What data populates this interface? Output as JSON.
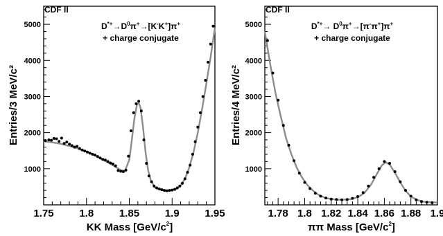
{
  "chart_data": [
    {
      "type": "scatter",
      "experiment": "CDF II",
      "ylabel": "Entries/3 MeV/c²",
      "xlabel_parts": {
        "main": "KK Mass [GeV/c",
        "sup": "2",
        "end": "]"
      },
      "annotation": {
        "line1": [
          {
            "t": "D"
          },
          {
            "t": "*+",
            "sup": true
          },
          {
            "t": "→D"
          },
          {
            "t": "0",
            "sup": true
          },
          {
            "t": "π"
          },
          {
            "t": "+",
            "sup": true
          },
          {
            "t": "→[K"
          },
          {
            "t": "-",
            "sup": true
          },
          {
            "t": "K"
          },
          {
            "t": "+",
            "sup": true
          },
          {
            "t": "]π"
          },
          {
            "t": "+",
            "sup": true
          }
        ],
        "line2": "+ charge conjugate"
      },
      "xlim": [
        1.75,
        1.95
      ],
      "ylim": [
        0,
        5500
      ],
      "x_ticks": [
        "1.75",
        "1.8",
        "1.85",
        "1.9",
        "1.95"
      ],
      "y_ticks": [
        "1000",
        "2000",
        "3000",
        "4000",
        "5000"
      ],
      "series": [
        {
          "style": "points",
          "x": [
            1.752,
            1.756,
            1.759,
            1.762,
            1.765,
            1.768,
            1.771,
            1.774,
            1.777,
            1.78,
            1.783,
            1.786,
            1.789,
            1.792,
            1.795,
            1.798,
            1.801,
            1.804,
            1.807,
            1.81,
            1.813,
            1.816,
            1.819,
            1.822,
            1.825,
            1.828,
            1.831,
            1.834,
            1.837,
            1.84,
            1.843,
            1.846,
            1.849,
            1.852,
            1.855,
            1.858,
            1.861,
            1.864,
            1.867,
            1.87,
            1.873,
            1.876,
            1.879,
            1.882,
            1.885,
            1.888,
            1.891,
            1.894,
            1.897,
            1.9,
            1.903,
            1.906,
            1.909,
            1.912,
            1.915,
            1.918,
            1.921,
            1.924,
            1.927,
            1.93,
            1.933,
            1.936,
            1.939,
            1.942,
            1.945,
            1.948
          ],
          "y": [
            1780,
            1800,
            1790,
            1840,
            1830,
            1760,
            1850,
            1700,
            1740,
            1680,
            1640,
            1600,
            1620,
            1560,
            1520,
            1490,
            1460,
            1430,
            1400,
            1380,
            1340,
            1300,
            1260,
            1240,
            1200,
            1160,
            1130,
            1080,
            950,
            930,
            920,
            960,
            1350,
            2050,
            2550,
            2800,
            2870,
            2600,
            1800,
            1150,
            800,
            640,
            520,
            470,
            440,
            420,
            400,
            390,
            400,
            410,
            430,
            470,
            520,
            600,
            720,
            900,
            1100,
            1400,
            1750,
            2150,
            2550,
            3000,
            3450,
            3950,
            4450,
            4950
          ]
        },
        {
          "style": "curve",
          "x": [
            1.75,
            1.76,
            1.77,
            1.78,
            1.79,
            1.8,
            1.81,
            1.82,
            1.83,
            1.84,
            1.845,
            1.85,
            1.853,
            1.856,
            1.859,
            1.861,
            1.863,
            1.866,
            1.869,
            1.872,
            1.875,
            1.88,
            1.885,
            1.89,
            1.895,
            1.9,
            1.905,
            1.91,
            1.915,
            1.92,
            1.925,
            1.93,
            1.935,
            1.94,
            1.945,
            1.95
          ],
          "y": [
            1760,
            1730,
            1690,
            1630,
            1560,
            1480,
            1370,
            1240,
            1110,
            960,
            940,
            1250,
            1800,
            2400,
            2780,
            2820,
            2700,
            2150,
            1450,
            950,
            690,
            480,
            430,
            400,
            390,
            400,
            440,
            540,
            720,
            1030,
            1450,
            2000,
            2650,
            3350,
            4100,
            4900
          ]
        }
      ]
    },
    {
      "type": "scatter",
      "experiment": "CDF II",
      "ylabel": "Entries/4 MeV/c²",
      "xlabel_parts": {
        "main": "ππ Mass [GeV/c",
        "sup": "2",
        "end": "]"
      },
      "annotation": {
        "line1": [
          {
            "t": "D"
          },
          {
            "t": "*+",
            "sup": true
          },
          {
            "t": "→ D"
          },
          {
            "t": "0",
            "sup": true
          },
          {
            "t": "π"
          },
          {
            "t": "+",
            "sup": true
          },
          {
            "t": "→[π"
          },
          {
            "t": "-",
            "sup": true
          },
          {
            "t": "π"
          },
          {
            "t": "+",
            "sup": true
          },
          {
            "t": "]π"
          },
          {
            "t": "+",
            "sup": true
          }
        ],
        "line2": "+ charge conjugate"
      },
      "xlim": [
        1.77,
        1.9
      ],
      "ylim": [
        0,
        5500
      ],
      "x_ticks": [
        "1.78",
        "1.8",
        "1.82",
        "1.84",
        "1.86",
        "1.88",
        "1.9"
      ],
      "y_ticks": [
        "1000",
        "2000",
        "3000",
        "4000",
        "5000"
      ],
      "series": [
        {
          "style": "points",
          "x": [
            1.772,
            1.776,
            1.78,
            1.784,
            1.788,
            1.792,
            1.796,
            1.8,
            1.804,
            1.808,
            1.812,
            1.816,
            1.82,
            1.824,
            1.828,
            1.832,
            1.836,
            1.84,
            1.844,
            1.848,
            1.852,
            1.856,
            1.86,
            1.864,
            1.868,
            1.872,
            1.876,
            1.88,
            1.884,
            1.888,
            1.892,
            1.896
          ],
          "y": [
            4550,
            3650,
            2900,
            2200,
            1650,
            1220,
            880,
            620,
            450,
            320,
            240,
            190,
            160,
            150,
            140,
            150,
            180,
            230,
            340,
            520,
            760,
            1000,
            1200,
            1150,
            920,
            640,
            400,
            240,
            140,
            90,
            70,
            60
          ]
        },
        {
          "style": "curve",
          "x": [
            1.77,
            1.774,
            1.778,
            1.782,
            1.786,
            1.79,
            1.794,
            1.798,
            1.802,
            1.806,
            1.81,
            1.815,
            1.82,
            1.825,
            1.83,
            1.835,
            1.84,
            1.845,
            1.85,
            1.854,
            1.858,
            1.861,
            1.864,
            1.868,
            1.872,
            1.876,
            1.88,
            1.885,
            1.89,
            1.895,
            1.9
          ],
          "y": [
            4800,
            3900,
            3100,
            2450,
            1850,
            1400,
            1030,
            760,
            550,
            400,
            290,
            200,
            160,
            145,
            145,
            160,
            210,
            330,
            560,
            830,
            1090,
            1180,
            1120,
            890,
            620,
            390,
            230,
            130,
            85,
            70,
            65
          ]
        }
      ]
    }
  ]
}
